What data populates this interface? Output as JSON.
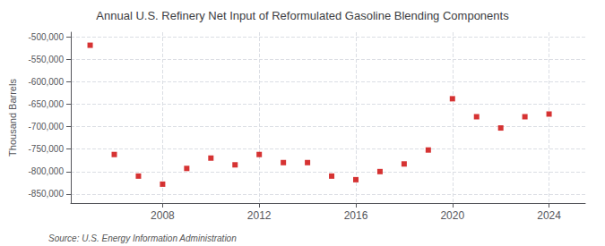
{
  "chart_data": {
    "type": "scatter",
    "title": "Annual U.S. Refinery Net Input of Reformulated Gasoline Blending Components",
    "ylabel": "Thousand Barrels",
    "source": "Source: U.S. Energy Information Administration",
    "x": [
      2005,
      2006,
      2007,
      2008,
      2009,
      2010,
      2011,
      2012,
      2013,
      2014,
      2015,
      2016,
      2017,
      2018,
      2019,
      2020,
      2021,
      2022,
      2023,
      2024
    ],
    "values": [
      -519000,
      -762000,
      -810000,
      -828000,
      -793000,
      -770000,
      -785000,
      -762000,
      -780000,
      -780000,
      -810000,
      -818000,
      -800000,
      -783000,
      -752000,
      -638000,
      -678000,
      -703000,
      -678000,
      -672000
    ],
    "color": "#cc0000",
    "marker": "square",
    "grid": true,
    "xlim": [
      2004.2,
      2025.5
    ],
    "xticks": [
      2008,
      2012,
      2016,
      2020,
      2024
    ],
    "ylim": [
      -870000,
      -490000
    ],
    "yticks": [
      {
        "value": -500000,
        "label": "-500,000"
      },
      {
        "value": -550000,
        "label": "-550,000"
      },
      {
        "value": -600000,
        "label": "-600,000"
      },
      {
        "value": -650000,
        "label": "-650,000"
      },
      {
        "value": -700000,
        "label": "-700,000"
      },
      {
        "value": -750000,
        "label": "-750,000"
      },
      {
        "value": -800000,
        "label": "-800,000"
      },
      {
        "value": -850000,
        "label": "-850,000"
      }
    ]
  }
}
